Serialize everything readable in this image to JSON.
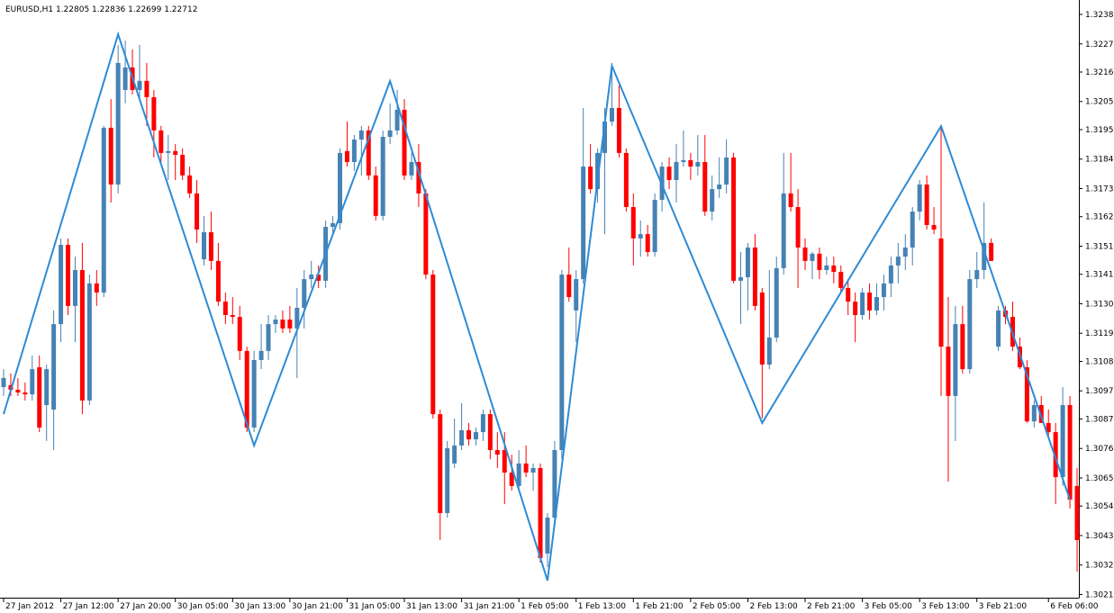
{
  "chart_data": {
    "type": "candlestick",
    "title": "EURUSD,H1  1.22805 1.22836 1.22699 1.22712",
    "up_color": "#4682b4",
    "down_color": "#ff0000",
    "ylim": [
      1.30203,
      1.32417
    ],
    "yticks": [
      1.30215,
      1.30325,
      1.30435,
      1.30545,
      {
        "value": 1.3065,
        "label": "1.30650"
      },
      {
        "value": 1.3076,
        "label": "1.30760"
      },
      {
        "value": 1.3087,
        "label": "1.30870"
      },
      1.30975,
      1.31085,
      {
        "value": 1.3119,
        "label": "1.31190"
      },
      {
        "value": 1.313,
        "label": "1.31300"
      },
      {
        "value": 1.3141,
        "label": "1.31410"
      },
      1.31515,
      1.31625,
      {
        "value": 1.3173,
        "label": "1.31730"
      },
      {
        "value": 1.3184,
        "label": "1.31840"
      },
      {
        "value": 1.3195,
        "label": "1.31950"
      },
      1.32055,
      1.32165,
      {
        "value": 1.3227,
        "label": "1.32270"
      },
      {
        "value": 1.3238,
        "label": "1.32380"
      }
    ],
    "categories": [
      "27 Jan 2012",
      null,
      null,
      null,
      null,
      null,
      null,
      null,
      "27 Jan 12:00",
      null,
      null,
      null,
      null,
      null,
      null,
      null,
      "27 Jan 20:00",
      null,
      null,
      null,
      null,
      null,
      null,
      null,
      "30 Jan 05:00",
      null,
      null,
      null,
      null,
      null,
      null,
      null,
      "30 Jan 13:00",
      null,
      null,
      null,
      null,
      null,
      null,
      null,
      "30 Jan 21:00",
      null,
      null,
      null,
      null,
      null,
      null,
      null,
      "31 Jan 05:00",
      null,
      null,
      null,
      null,
      null,
      null,
      null,
      "31 Jan 13:00",
      null,
      null,
      null,
      null,
      null,
      null,
      null,
      "31 Jan 21:00",
      null,
      null,
      null,
      null,
      null,
      null,
      null,
      "1 Feb 05:00",
      null,
      null,
      null,
      null,
      null,
      null,
      null,
      "1 Feb 13:00",
      null,
      null,
      null,
      null,
      null,
      null,
      null,
      "1 Feb 21:00",
      null,
      null,
      null,
      null,
      null,
      null,
      null,
      "2 Feb 05:00",
      null,
      null,
      null,
      null,
      null,
      null,
      null,
      "2 Feb 13:00",
      null,
      null,
      null,
      null,
      null,
      null,
      null,
      "2 Feb 21:00",
      null,
      null,
      null,
      null,
      null,
      null,
      null,
      "3 Feb 05:00",
      null,
      null,
      null,
      null,
      null,
      null,
      null,
      "3 Feb 13:00",
      null,
      null,
      null,
      null,
      null,
      null,
      null,
      "3 Feb 21:00",
      null,
      null,
      null,
      null,
      null,
      null,
      null,
      null,
      null,
      "6 Feb 06:00",
      null,
      null,
      null,
      null
    ],
    "ohlc": [
      [
        1.30989,
        1.31056,
        1.30956,
        1.31023
      ],
      [
        1.30996,
        1.3104,
        1.30956,
        1.30979
      ],
      [
        1.30979,
        1.31023,
        1.30956,
        1.30969
      ],
      [
        1.30969,
        1.31006,
        1.30939,
        1.30962
      ],
      [
        1.30962,
        1.31107,
        1.30939,
        1.31056
      ],
      [
        1.31063,
        1.31107,
        1.30821,
        1.30838
      ],
      [
        1.30922,
        1.31073,
        1.30788,
        1.31056
      ],
      [
        1.30905,
        1.31275,
        1.30754,
        1.31224
      ],
      [
        1.31224,
        1.31544,
        1.31157,
        1.3152
      ],
      [
        1.3152,
        1.31544,
        1.31258,
        1.31292
      ],
      [
        1.31292,
        1.31476,
        1.31157,
        1.31426
      ],
      [
        1.31426,
        1.31527,
        1.30888,
        1.30939
      ],
      [
        1.30939,
        1.31409,
        1.30922,
        1.31376
      ],
      [
        1.31376,
        1.31426,
        1.31292,
        1.31342
      ],
      [
        1.31342,
        1.31964,
        1.31325,
        1.31957
      ],
      [
        1.31957,
        1.32064,
        1.31678,
        1.31745
      ],
      [
        1.31745,
        1.32266,
        1.31712,
        1.32199
      ],
      [
        1.32098,
        1.32283,
        1.32048,
        1.32182
      ],
      [
        1.32182,
        1.32249,
        1.32081,
        1.32098
      ],
      [
        1.32098,
        1.32266,
        1.32064,
        1.32132
      ],
      [
        1.32132,
        1.32199,
        1.31964,
        1.32071
      ],
      [
        1.32071,
        1.32098,
        1.31846,
        1.31947
      ],
      [
        1.31947,
        1.31964,
        1.31829,
        1.31863
      ],
      [
        1.31863,
        1.3193,
        1.31762,
        1.3187
      ],
      [
        1.3187,
        1.31896,
        1.31762,
        1.31856
      ],
      [
        1.31856,
        1.3188,
        1.31762,
        1.31779
      ],
      [
        1.31779,
        1.31812,
        1.31695,
        1.31712
      ],
      [
        1.31712,
        1.31762,
        1.31527,
        1.31577
      ],
      [
        1.31466,
        1.31628,
        1.31443,
        1.31567
      ],
      [
        1.31567,
        1.31644,
        1.31426,
        1.3146
      ],
      [
        1.3146,
        1.31527,
        1.31292,
        1.31308
      ],
      [
        1.31308,
        1.31342,
        1.31224,
        1.31258
      ],
      [
        1.31258,
        1.31325,
        1.31224,
        1.31251
      ],
      [
        1.31251,
        1.31292,
        1.3109,
        1.31124
      ],
      [
        1.31124,
        1.3114,
        1.30821,
        1.30838
      ],
      [
        1.30838,
        1.31124,
        1.30821,
        1.3109
      ],
      [
        1.3109,
        1.31224,
        1.31056,
        1.31124
      ],
      [
        1.31124,
        1.31258,
        1.3109,
        1.31224
      ],
      [
        1.31224,
        1.31258,
        1.31191,
        1.31241
      ],
      [
        1.31241,
        1.31275,
        1.31191,
        1.31208
      ],
      [
        1.31241,
        1.31292,
        1.31191,
        1.31208
      ],
      [
        1.31208,
        1.31359,
        1.31023,
        1.31285
      ],
      [
        1.31285,
        1.31426,
        1.31208,
        1.31392
      ],
      [
        1.31392,
        1.3146,
        1.31359,
        1.31409
      ],
      [
        1.31409,
        1.31443,
        1.31359,
        1.31386
      ],
      [
        1.31386,
        1.31611,
        1.31359,
        1.31587
      ],
      [
        1.31587,
        1.31628,
        1.3156,
        1.31601
      ],
      [
        1.31601,
        1.3188,
        1.31577,
        1.31863
      ],
      [
        1.3187,
        1.3198,
        1.31812,
        1.31829
      ],
      [
        1.31829,
        1.3193,
        1.31796,
        1.31913
      ],
      [
        1.31913,
        1.31964,
        1.31779,
        1.31947
      ],
      [
        1.31947,
        1.31964,
        1.31762,
        1.31779
      ],
      [
        1.31779,
        1.31812,
        1.31611,
        1.31628
      ],
      [
        1.31628,
        1.31947,
        1.31611,
        1.31923
      ],
      [
        1.31923,
        1.32048,
        1.31896,
        1.31947
      ],
      [
        1.31947,
        1.32098,
        1.3193,
        1.32024
      ],
      [
        1.32024,
        1.32064,
        1.31762,
        1.31779
      ],
      [
        1.31779,
        1.31863,
        1.31762,
        1.31829
      ],
      [
        1.31829,
        1.31896,
        1.31661,
        1.31712
      ],
      [
        1.31712,
        1.31728,
        1.31392,
        1.31409
      ],
      [
        1.31409,
        1.31426,
        1.30872,
        1.30888
      ],
      [
        1.30888,
        1.30905,
        1.30418,
        1.30519
      ],
      [
        1.30519,
        1.30788,
        1.30502,
        1.30761
      ],
      [
        1.30704,
        1.30872,
        1.30687,
        1.30771
      ],
      [
        1.30771,
        1.30929,
        1.30754,
        1.30828
      ],
      [
        1.30828,
        1.30855,
        1.30771,
        1.30794
      ],
      [
        1.30794,
        1.30838,
        1.30771,
        1.30821
      ],
      [
        1.30821,
        1.30905,
        1.30788,
        1.30888
      ],
      [
        1.30888,
        1.30905,
        1.3072,
        1.30754
      ],
      [
        1.30754,
        1.30821,
        1.30687,
        1.30737
      ],
      [
        1.30754,
        1.30821,
        1.30552,
        1.3067
      ],
      [
        1.3067,
        1.30737,
        1.30603,
        1.3062
      ],
      [
        1.3062,
        1.30754,
        1.30603,
        1.30704
      ],
      [
        1.30704,
        1.30771,
        1.30653,
        1.3067
      ],
      [
        1.3067,
        1.30704,
        1.30603,
        1.30687
      ],
      [
        1.30687,
        1.30704,
        1.30334,
        1.30351
      ],
      [
        1.30368,
        1.30519,
        1.30317,
        1.30502
      ],
      [
        1.30502,
        1.30788,
        1.30468,
        1.30754
      ],
      [
        1.30754,
        1.31426,
        1.3072,
        1.31409
      ],
      [
        1.31409,
        1.3151,
        1.31308,
        1.31325
      ],
      [
        1.31275,
        1.31426,
        1.31157,
        1.31392
      ],
      [
        1.31392,
        1.32031,
        1.31376,
        1.31812
      ],
      [
        1.31812,
        1.31896,
        1.31712,
        1.31728
      ],
      [
        1.31728,
        1.3188,
        1.31678,
        1.31863
      ],
      [
        1.31863,
        1.32031,
        1.3156,
        1.3198
      ],
      [
        1.3198,
        1.32199,
        1.31964,
        1.32031
      ],
      [
        1.32031,
        1.32115,
        1.31846,
        1.31863
      ],
      [
        1.31863,
        1.3188,
        1.31644,
        1.31661
      ],
      [
        1.31661,
        1.31712,
        1.31443,
        1.31544
      ],
      [
        1.31544,
        1.31611,
        1.31476,
        1.3156
      ],
      [
        1.3156,
        1.31594,
        1.31476,
        1.31493
      ],
      [
        1.31493,
        1.31712,
        1.31476,
        1.31688
      ],
      [
        1.31688,
        1.31829,
        1.31644,
        1.31812
      ],
      [
        1.31812,
        1.31846,
        1.31728,
        1.31762
      ],
      [
        1.31762,
        1.31896,
        1.31678,
        1.31829
      ],
      [
        1.31829,
        1.31947,
        1.31812,
        1.31836
      ],
      [
        1.31836,
        1.31863,
        1.31762,
        1.31812
      ],
      [
        1.31812,
        1.3193,
        1.31779,
        1.31829
      ],
      [
        1.31829,
        1.3193,
        1.31628,
        1.31644
      ],
      [
        1.31644,
        1.31779,
        1.31611,
        1.31728
      ],
      [
        1.31728,
        1.31846,
        1.31695,
        1.31745
      ],
      [
        1.31745,
        1.31913,
        1.31712,
        1.31846
      ],
      [
        1.31846,
        1.31863,
        1.31376,
        1.31386
      ],
      [
        1.31386,
        1.31493,
        1.31224,
        1.31399
      ],
      [
        1.31399,
        1.31527,
        1.31275,
        1.3151
      ],
      [
        1.3151,
        1.3156,
        1.31275,
        1.31292
      ],
      [
        1.31342,
        1.31359,
        1.30872,
        1.31073
      ],
      [
        1.31073,
        1.31426,
        1.31056,
        1.31174
      ],
      [
        1.31174,
        1.31476,
        1.31157,
        1.31433
      ],
      [
        1.31433,
        1.31863,
        1.31409,
        1.31712
      ],
      [
        1.31712,
        1.31863,
        1.31644,
        1.31661
      ],
      [
        1.31661,
        1.31728,
        1.31359,
        1.3151
      ],
      [
        1.3151,
        1.31544,
        1.31426,
        1.3146
      ],
      [
        1.3146,
        1.31493,
        1.31392,
        1.31487
      ],
      [
        1.31487,
        1.3151,
        1.31392,
        1.31426
      ],
      [
        1.31426,
        1.31476,
        1.31409,
        1.31443
      ],
      [
        1.31443,
        1.31476,
        1.31376,
        1.31419
      ],
      [
        1.31419,
        1.31443,
        1.31342,
        1.31359
      ],
      [
        1.31359,
        1.31392,
        1.31258,
        1.31308
      ],
      [
        1.31308,
        1.31342,
        1.31157,
        1.31258
      ],
      [
        1.31258,
        1.31359,
        1.31241,
        1.31342
      ],
      [
        1.31342,
        1.31376,
        1.31241,
        1.31275
      ],
      [
        1.31275,
        1.31376,
        1.31258,
        1.31325
      ],
      [
        1.31325,
        1.31409,
        1.31275,
        1.31376
      ],
      [
        1.31376,
        1.31476,
        1.31325,
        1.31443
      ],
      [
        1.31443,
        1.31527,
        1.31376,
        1.31476
      ],
      [
        1.31476,
        1.3156,
        1.31426,
        1.3151
      ],
      [
        1.3151,
        1.31661,
        1.31443,
        1.31644
      ],
      [
        1.31644,
        1.31762,
        1.31611,
        1.31745
      ],
      [
        1.31745,
        1.31779,
        1.31577,
        1.31594
      ],
      [
        1.31594,
        1.31661,
        1.3156,
        1.31577
      ],
      [
        1.31544,
        1.31964,
        1.30956,
        1.3114
      ],
      [
        1.3114,
        1.31325,
        1.30636,
        1.30956
      ],
      [
        1.30956,
        1.31292,
        1.30788,
        1.31224
      ],
      [
        1.31224,
        1.31292,
        1.3104,
        1.31056
      ],
      [
        1.31056,
        1.31426,
        1.3104,
        1.31392
      ],
      [
        1.31392,
        1.31493,
        1.31359,
        1.31426
      ],
      [
        1.31426,
        1.31678,
        1.31392,
        1.31527
      ],
      [
        1.31527,
        1.31544,
        1.3146,
        1.3146
      ],
      [
        1.3114,
        1.31292,
        1.31124,
        1.31275
      ],
      [
        1.31275,
        1.31292,
        1.31224,
        1.31251
      ],
      [
        1.31251,
        1.31308,
        1.31124,
        1.3114
      ],
      [
        1.3114,
        1.31174,
        1.31056,
        1.31063
      ],
      [
        1.31063,
        1.3109,
        1.30855,
        1.30861
      ],
      [
        1.30861,
        1.30939,
        1.30838,
        1.30922
      ],
      [
        1.30922,
        1.30956,
        1.30855,
        1.30855
      ],
      [
        1.30855,
        1.30905,
        1.30804,
        1.30821
      ],
      [
        1.30821,
        1.30855,
        1.30552,
        1.30653
      ],
      [
        1.30653,
        1.30989,
        1.3062,
        1.30922
      ],
      [
        1.30922,
        1.30956,
        1.30536,
        1.30569
      ],
      [
        1.3062,
        1.30687,
        1.303,
        1.30418
      ]
    ],
    "zigzag": {
      "color": "#2d8bd6",
      "x": [
        0,
        16,
        35,
        54,
        76,
        85,
        106,
        131,
        149
      ],
      "values": [
        1.30888,
        1.32306,
        1.30771,
        1.32131,
        1.30267,
        1.32188,
        1.30855,
        1.31963,
        1.30569
      ]
    }
  }
}
